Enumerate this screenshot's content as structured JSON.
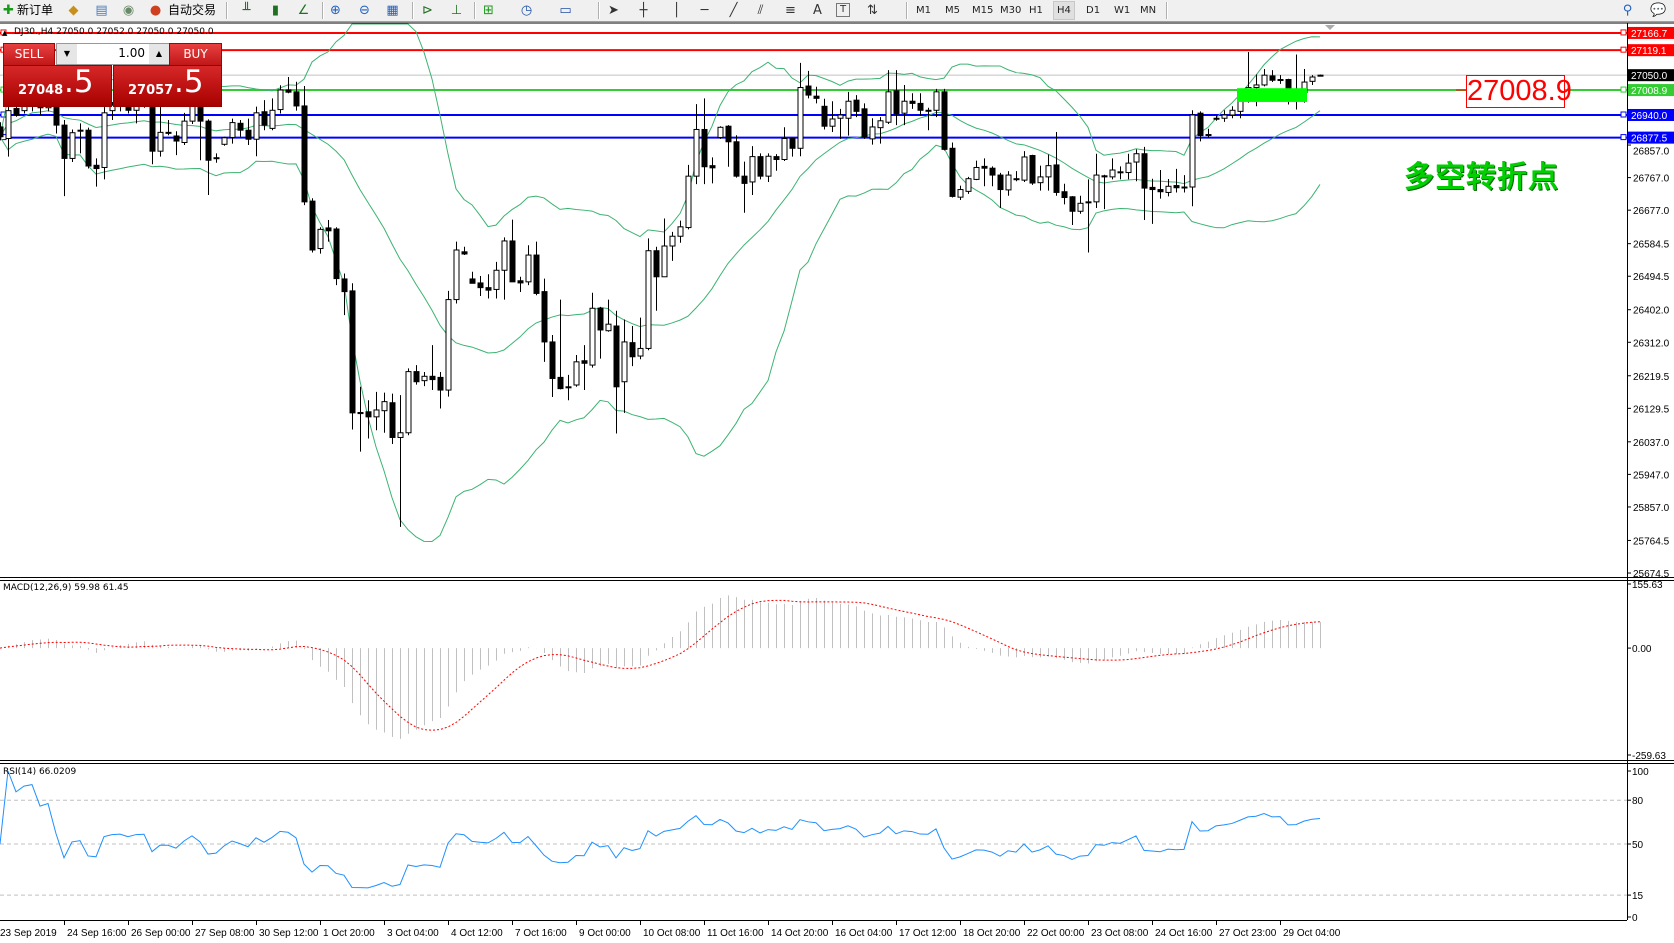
{
  "toolbar": {
    "new_order_label": "新订单",
    "auto_trading_label": "自动交易",
    "icons": [
      "new-order-icon",
      "market-watch-icon",
      "data-window-icon",
      "navigator-icon",
      "auto-trading-icon",
      "bar-chart-icon",
      "candlestick-icon",
      "line-chart-icon",
      "zoom-in-icon",
      "zoom-out-icon",
      "tile-windows-icon",
      "auto-scroll-icon",
      "chart-shift-icon",
      "indicators-icon",
      "periods-icon",
      "templates-icon",
      "cursor-icon",
      "crosshair-icon",
      "vertical-line-icon",
      "horizontal-line-icon",
      "trendline-icon",
      "fibonacci-icon",
      "fibonacci-fan-icon",
      "text-icon",
      "text-label-icon",
      "arrows-icon",
      "search-icon",
      "chat-icon"
    ],
    "text_tool_label": "A",
    "label_tool_label": "T",
    "timeframes": [
      "M1",
      "M5",
      "M15",
      "M30",
      "H1",
      "H4",
      "D1",
      "W1",
      "MN"
    ],
    "active_timeframe": "H4"
  },
  "chart": {
    "title": "DJ30.,H4  27050.0 27052.0 27050.0 27050.0",
    "one_click": {
      "sell_label": "SELL",
      "buy_label": "BUY",
      "lot": "1.00",
      "sell_price_main": "27048",
      "sell_price_big": ".5",
      "buy_price_main": "27057",
      "buy_price_big": ".5"
    },
    "annotation_price": "27008.9",
    "annotation_text": "多空转折点",
    "price_axis_range": [
      25663.5,
      27191.4
    ],
    "price_ticks": [
      "26857.0",
      "26767.0",
      "26677.0",
      "26584.5",
      "26494.5",
      "26402.0",
      "26312.0",
      "26219.5",
      "26129.5",
      "26037.0",
      "25947.0",
      "25857.0",
      "25764.5",
      "25674.5"
    ],
    "levels": [
      {
        "price": 27166.7,
        "label": "27166.7",
        "color": "#ff0000"
      },
      {
        "price": 27119.1,
        "label": "27119.1",
        "color": "#ff0000"
      },
      {
        "price": 27008.9,
        "label": "27008.9",
        "color": "#33cc33"
      },
      {
        "price": 26940.0,
        "label": "26940.0",
        "color": "#0000ff"
      },
      {
        "price": 26877.5,
        "label": "26877.5",
        "color": "#0000ff"
      }
    ],
    "current_price": {
      "price": 27050.0,
      "label": "27050.0",
      "line_color": "#c0c0c0",
      "label_bg": "#000000"
    },
    "rectangle": {
      "start_bar": 155,
      "end_bar": 163,
      "price_top": 27014,
      "price_bottom": 26976,
      "color": "#00ff00"
    },
    "bollinger": {
      "period": 20,
      "deviation": 2,
      "color": "#3cb371"
    },
    "time_labels": [
      "23 Sep 2019",
      "24 Sep 16:00",
      "26 Sep 00:00",
      "27 Sep 08:00",
      "30 Sep 12:00",
      "1 Oct 20:00",
      "3 Oct 04:00",
      "4 Oct 12:00",
      "7 Oct 16:00",
      "9 Oct 00:00",
      "10 Oct 08:00",
      "11 Oct 16:00",
      "14 Oct 20:00",
      "16 Oct 04:00",
      "17 Oct 12:00",
      "18 Oct 20:00",
      "22 Oct 00:00",
      "23 Oct 08:00",
      "24 Oct 16:00",
      "27 Oct 23:00",
      "29 Oct 04:00"
    ],
    "bars_per_time_label": 8
  },
  "macd": {
    "label": "MACD(12,26,9) 59.98 61.45",
    "range": [
      -259.63,
      155.63
    ],
    "ticks": [
      "155.63",
      "0.00",
      "-259.63"
    ],
    "hist_color": "#c0c0c0",
    "signal_color": "#ff0000"
  },
  "rsi": {
    "label": "RSI(14) 66.0209",
    "range": [
      0,
      100
    ],
    "ticks": [
      "100",
      "80",
      "50",
      "15",
      "0"
    ],
    "levels": [
      80,
      50,
      15
    ],
    "color": "#1e90ff"
  },
  "chart_data": {
    "type": "candlestick",
    "ohlc_order": [
      "open",
      "high",
      "low",
      "close"
    ],
    "candles": [
      [
        26907,
        26920,
        26870,
        26880
      ],
      [
        26875,
        26967,
        26825,
        26952
      ],
      [
        26958,
        26967,
        26935,
        26940
      ],
      [
        26952,
        26981,
        26944,
        26972
      ],
      [
        26972,
        27000,
        26950,
        26985
      ],
      [
        26985,
        26998,
        26940,
        26960
      ],
      [
        26960,
        26990,
        26950,
        26972
      ],
      [
        26972,
        26981,
        26889,
        26912
      ],
      [
        26912,
        26926,
        26716,
        26820
      ],
      [
        26820,
        26900,
        26810,
        26891
      ],
      [
        26898,
        26917,
        26834,
        26898
      ],
      [
        26898,
        26905,
        26792,
        26799
      ],
      [
        26801,
        26820,
        26742,
        26792
      ],
      [
        26795,
        26972,
        26762,
        26946
      ],
      [
        26952,
        26976,
        26926,
        26967
      ],
      [
        26967,
        26985,
        26950,
        26972
      ],
      [
        26967,
        26976,
        26944,
        26953
      ],
      [
        26953,
        26985,
        26917,
        26972
      ],
      [
        26972,
        26990,
        26960,
        26975
      ],
      [
        26975,
        26985,
        26804,
        26840
      ],
      [
        26840,
        26972,
        26825,
        26892
      ],
      [
        26892,
        26926,
        26884,
        26891
      ],
      [
        26882,
        26895,
        26829,
        26868
      ],
      [
        26864,
        26946,
        26857,
        26923
      ],
      [
        26923,
        26980,
        26915,
        26967
      ],
      [
        26967,
        26976,
        26815,
        26923
      ],
      [
        26923,
        26928,
        26719,
        26815
      ],
      [
        26820,
        26834,
        26808,
        26822
      ],
      [
        26859,
        26880,
        26855,
        26877
      ],
      [
        26878,
        26930,
        26861,
        26919
      ],
      [
        26917,
        26926,
        26880,
        26898
      ],
      [
        26898,
        26930,
        26857,
        26873
      ],
      [
        26873,
        26963,
        26826,
        26946
      ],
      [
        26949,
        26981,
        26898,
        26912
      ],
      [
        26903,
        26986,
        26898,
        26953
      ],
      [
        26955,
        27022,
        26944,
        27009
      ],
      [
        27009,
        27045,
        27000,
        27003
      ],
      [
        27004,
        27032,
        26952,
        26965
      ],
      [
        26965,
        27020,
        26691,
        26700
      ],
      [
        26702,
        26710,
        26560,
        26567
      ],
      [
        26571,
        26630,
        26557,
        26624
      ],
      [
        26628,
        26650,
        26590,
        26620
      ],
      [
        26625,
        26630,
        26470,
        26488
      ],
      [
        26487,
        26502,
        26387,
        26452
      ],
      [
        26454,
        26475,
        26071,
        26117
      ],
      [
        26118,
        26189,
        26010,
        26115
      ],
      [
        26120,
        26152,
        26046,
        26106
      ],
      [
        26106,
        26175,
        26069,
        26125
      ],
      [
        26123,
        26173,
        26062,
        26148
      ],
      [
        26145,
        26170,
        26031,
        26049
      ],
      [
        26049,
        26166,
        25802,
        26062
      ],
      [
        26062,
        26240,
        26055,
        26231
      ],
      [
        26231,
        26249,
        26195,
        26203
      ],
      [
        26206,
        26230,
        26191,
        26218
      ],
      [
        26218,
        26304,
        26180,
        26209
      ],
      [
        26215,
        26230,
        26129,
        26180
      ],
      [
        26180,
        26454,
        26162,
        26430
      ],
      [
        26430,
        26590,
        26419,
        26567
      ],
      [
        26562,
        26576,
        26553,
        26556
      ],
      [
        26487,
        26507,
        26475,
        26475
      ],
      [
        26476,
        26495,
        26440,
        26463
      ],
      [
        26463,
        26500,
        26433,
        26456
      ],
      [
        26458,
        26534,
        26433,
        26511
      ],
      [
        26511,
        26602,
        26430,
        26592
      ],
      [
        26592,
        26651,
        26479,
        26479
      ],
      [
        26482,
        26493,
        26451,
        26476
      ],
      [
        26479,
        26580,
        26470,
        26553
      ],
      [
        26553,
        26590,
        26442,
        26447
      ],
      [
        26452,
        26488,
        26258,
        26313
      ],
      [
        26313,
        26332,
        26161,
        26212
      ],
      [
        26215,
        26430,
        26182,
        26184
      ],
      [
        26189,
        26222,
        26152,
        26189
      ],
      [
        26194,
        26277,
        26189,
        26258
      ],
      [
        26261,
        26304,
        26180,
        26254
      ],
      [
        26249,
        26449,
        26242,
        26406
      ],
      [
        26406,
        26410,
        26267,
        26346
      ],
      [
        26344,
        26430,
        26341,
        26362
      ],
      [
        26357,
        26399,
        26060,
        26189
      ],
      [
        26203,
        26375,
        26117,
        26313
      ],
      [
        26311,
        26357,
        26246,
        26272
      ],
      [
        26274,
        26380,
        26265,
        26295
      ],
      [
        26295,
        26599,
        26290,
        26565
      ],
      [
        26565,
        26576,
        26399,
        26493
      ],
      [
        26493,
        26654,
        26493,
        26578
      ],
      [
        26578,
        26617,
        26537,
        26605
      ],
      [
        26605,
        26648,
        26587,
        26631
      ],
      [
        26629,
        26802,
        26624,
        26771
      ],
      [
        26771,
        26970,
        26749,
        26900
      ],
      [
        26900,
        26986,
        26749,
        26797
      ],
      [
        26800,
        26823,
        26751,
        26794
      ],
      [
        26878,
        26909,
        26874,
        26906
      ],
      [
        26909,
        26912,
        26797,
        26866
      ],
      [
        26866,
        26884,
        26767,
        26771
      ],
      [
        26771,
        26811,
        26670,
        26751
      ],
      [
        26755,
        26854,
        26719,
        26825
      ],
      [
        26825,
        26834,
        26762,
        26771
      ],
      [
        26771,
        26834,
        26755,
        26826
      ],
      [
        26825,
        26832,
        26786,
        26817
      ],
      [
        26817,
        26906,
        26813,
        26875
      ],
      [
        26875,
        26877,
        26825,
        26848
      ],
      [
        26848,
        27084,
        26826,
        27016
      ],
      [
        27020,
        27062,
        26986,
        26995
      ],
      [
        26992,
        27018,
        26972,
        26986
      ],
      [
        26964,
        26985,
        26900,
        26909
      ],
      [
        26909,
        26978,
        26893,
        26929
      ],
      [
        26931,
        26957,
        26874,
        26940
      ],
      [
        26931,
        27004,
        26883,
        26978
      ],
      [
        26981,
        26995,
        26934,
        26950
      ],
      [
        26957,
        26972,
        26874,
        26880
      ],
      [
        26874,
        26931,
        26858,
        26907
      ],
      [
        26905,
        26934,
        26861,
        26924
      ],
      [
        26920,
        27064,
        26915,
        27004
      ],
      [
        27007,
        27064,
        26912,
        26943
      ],
      [
        26945,
        27023,
        26912,
        26978
      ],
      [
        26978,
        27000,
        26957,
        26972
      ],
      [
        26972,
        27000,
        26938,
        26953
      ],
      [
        26953,
        26960,
        26898,
        26952
      ],
      [
        26953,
        27012,
        26934,
        27004
      ],
      [
        27004,
        27012,
        26842,
        26845
      ],
      [
        26848,
        26864,
        26712,
        26715
      ],
      [
        26713,
        26745,
        26705,
        26734
      ],
      [
        26729,
        26769,
        26722,
        26764
      ],
      [
        26762,
        26814,
        26760,
        26795
      ],
      [
        26798,
        26820,
        26743,
        26793
      ],
      [
        26793,
        26798,
        26743,
        26774
      ],
      [
        26774,
        26780,
        26683,
        26734
      ],
      [
        26733,
        26785,
        26717,
        26774
      ],
      [
        26764,
        26785,
        26757,
        26762
      ],
      [
        26760,
        26840,
        26755,
        26824
      ],
      [
        26828,
        26830,
        26747,
        26752
      ],
      [
        26753,
        26800,
        26731,
        26769
      ],
      [
        26769,
        26831,
        26731,
        26800
      ],
      [
        26802,
        26893,
        26717,
        26726
      ],
      [
        26728,
        26750,
        26693,
        26712
      ],
      [
        26714,
        26716,
        26636,
        26674
      ],
      [
        26674,
        26717,
        26667,
        26696
      ],
      [
        26700,
        26762,
        26560,
        26700
      ],
      [
        26700,
        26833,
        26683,
        26774
      ],
      [
        26772,
        26775,
        26680,
        26769
      ],
      [
        26769,
        26820,
        26762,
        26788
      ],
      [
        26783,
        26798,
        26762,
        26783
      ],
      [
        26781,
        26833,
        26762,
        26807
      ],
      [
        26810,
        26845,
        26757,
        26833
      ],
      [
        26833,
        26852,
        26650,
        26738
      ],
      [
        26740,
        26764,
        26639,
        26734
      ],
      [
        26734,
        26788,
        26709,
        26728
      ],
      [
        26726,
        26763,
        26715,
        26743
      ],
      [
        26745,
        26791,
        26726,
        26739
      ],
      [
        26741,
        26774,
        26726,
        26741
      ],
      [
        26741,
        26953,
        26688,
        26940
      ],
      [
        26945,
        26950,
        26867,
        26883
      ],
      [
        26886,
        26902,
        26877,
        26886
      ],
      [
        26931,
        26940,
        26924,
        26931
      ],
      [
        26931,
        26953,
        26921,
        26940
      ],
      [
        26940,
        26964,
        26931,
        26953
      ],
      [
        26950,
        26988,
        26931,
        26983
      ],
      [
        26983,
        27114,
        26974,
        27016
      ],
      [
        27016,
        27052,
        26964,
        27023
      ],
      [
        27023,
        27067,
        27019,
        27050
      ],
      [
        27048,
        27064,
        27031,
        27036
      ],
      [
        27038,
        27050,
        27026,
        27038
      ],
      [
        27038,
        27040,
        26969,
        27004
      ],
      [
        27004,
        27107,
        26955,
        27006
      ],
      [
        27002,
        27067,
        26974,
        27031
      ],
      [
        27033,
        27050,
        27023,
        27045
      ],
      [
        27050,
        27052,
        27050,
        27050
      ]
    ]
  }
}
